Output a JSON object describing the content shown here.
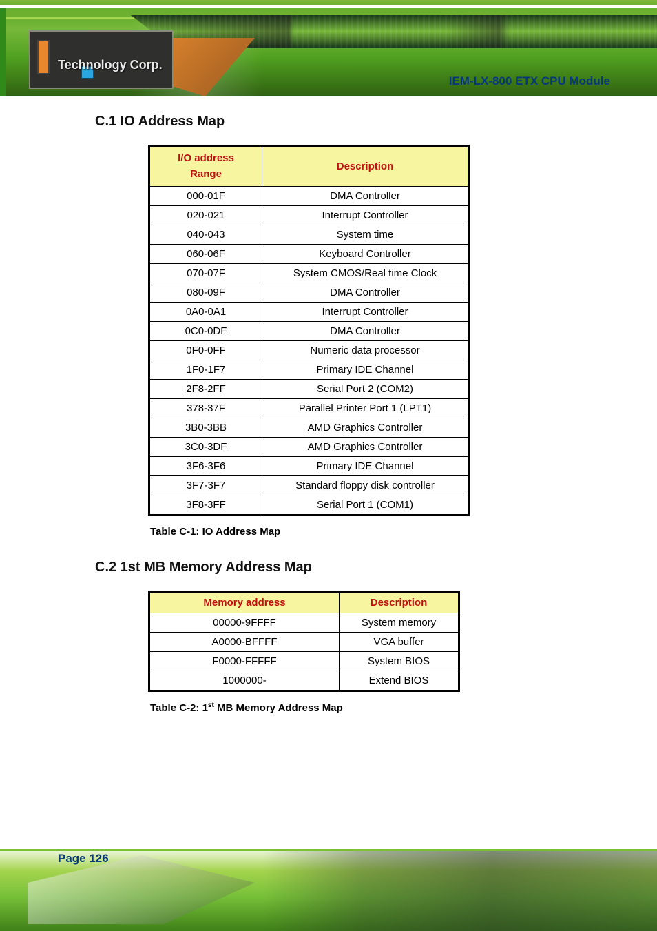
{
  "doc_title": "IEM-LX-800  ETX  CPU  Module",
  "section1": {
    "heading": "C.1 IO Address Map",
    "col1": "I/O address Range",
    "col2": "Description",
    "rows": [
      [
        "000-01F",
        "DMA Controller"
      ],
      [
        "020-021",
        "Interrupt Controller"
      ],
      [
        "040-043",
        "System time"
      ],
      [
        "060-06F",
        "Keyboard Controller"
      ],
      [
        "070-07F",
        "System CMOS/Real time Clock"
      ],
      [
        "080-09F",
        "DMA Controller"
      ],
      [
        "0A0-0A1",
        "Interrupt Controller"
      ],
      [
        "0C0-0DF",
        "DMA Controller"
      ],
      [
        "0F0-0FF",
        "Numeric data processor"
      ],
      [
        "1F0-1F7",
        "Primary IDE Channel"
      ],
      [
        "2F8-2FF",
        "Serial Port 2 (COM2)"
      ],
      [
        "378-37F",
        "Parallel Printer Port 1 (LPT1)"
      ],
      [
        "3B0-3BB",
        "AMD Graphics Controller"
      ],
      [
        "3C0-3DF",
        "AMD Graphics Controller"
      ],
      [
        "3F6-3F6",
        "Primary IDE Channel"
      ],
      [
        "3F7-3F7",
        "Standard floppy disk controller"
      ],
      [
        "3F8-3FF",
        "Serial Port 1 (COM1)"
      ]
    ],
    "caption": "Table C-1: IO Address Map"
  },
  "section2": {
    "heading": "C.2 1st MB Memory Address Map",
    "col1": "Memory address",
    "col2": "Description",
    "rows": [
      [
        "00000-9FFFF",
        "System memory"
      ],
      [
        "A0000-BFFFF",
        "VGA buffer"
      ],
      [
        "F0000-FFFFF",
        "System BIOS"
      ],
      [
        "1000000-",
        "Extend BIOS"
      ]
    ],
    "caption_pre": "Table C-2: 1",
    "caption_sup": "st",
    "caption_post": " MB Memory Address Map"
  },
  "page_number": "Page 126",
  "style": {
    "header_bg": "#f7f5a0",
    "header_fg": "#c01010",
    "accent": "#06387a",
    "table_border": "#000000",
    "body_font": "Verdana",
    "heading_font": "Arial",
    "th_fontsize": 15,
    "td_fontsize": 15,
    "banner_greens": [
      "#77b83a",
      "#50a020",
      "#a5d44f"
    ]
  }
}
